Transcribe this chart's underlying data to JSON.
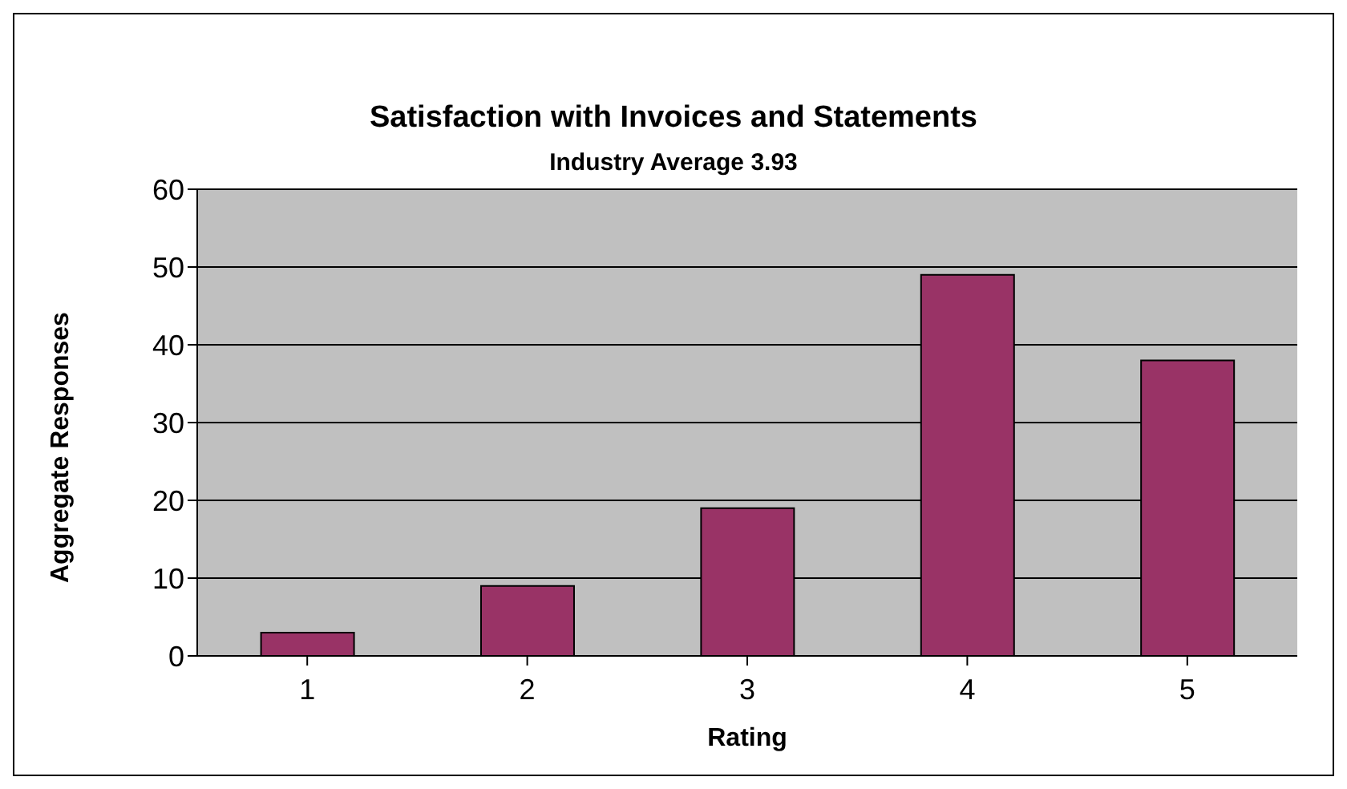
{
  "chart_data": {
    "type": "bar",
    "title": "Satisfaction with Invoices and Statements",
    "subtitle": "Industry Average 3.93",
    "xlabel": "Rating",
    "ylabel": "Aggregate Responses",
    "categories": [
      "1",
      "2",
      "3",
      "4",
      "5"
    ],
    "values": [
      3,
      9,
      19,
      49,
      38
    ],
    "color": "#993366",
    "ylim": [
      0,
      60
    ],
    "yticks": [
      0,
      10,
      20,
      30,
      40,
      50,
      60
    ],
    "grid": "y",
    "legend": false
  }
}
